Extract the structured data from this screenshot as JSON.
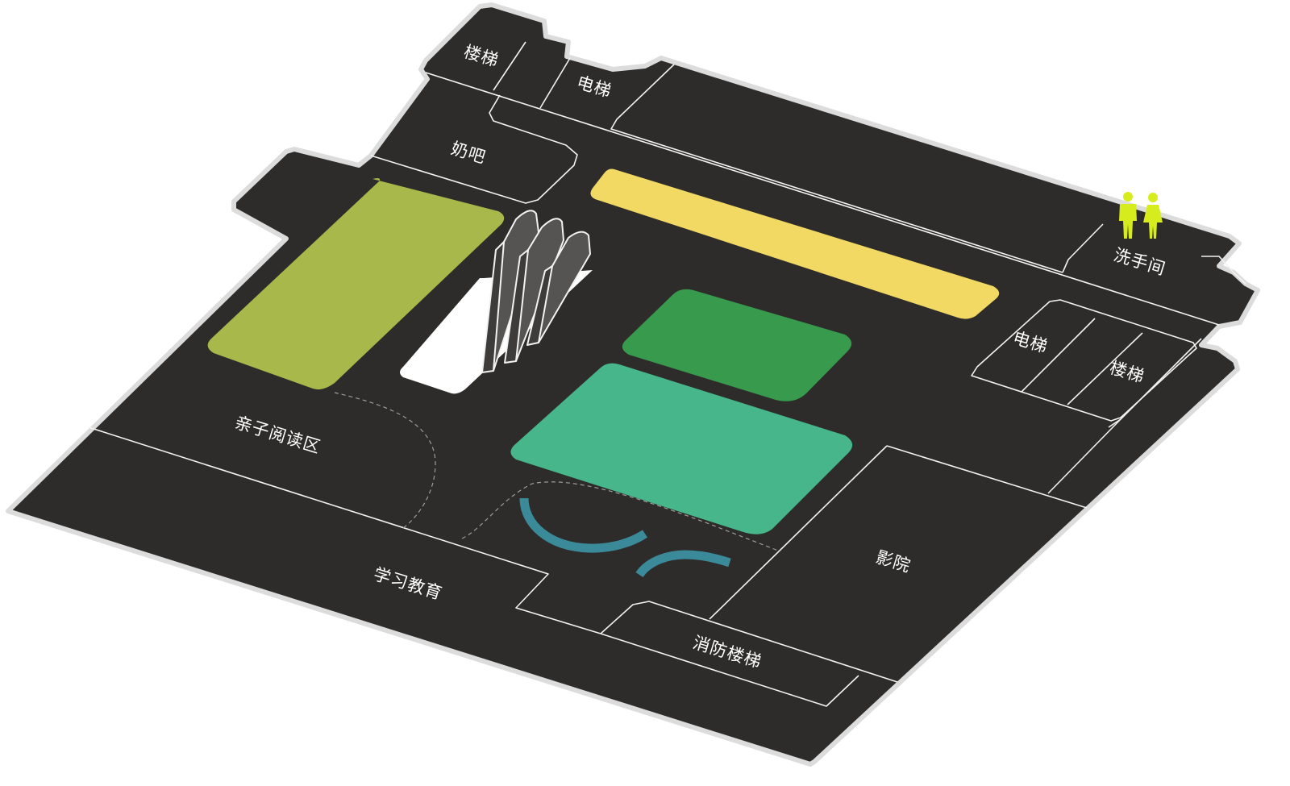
{
  "colors": {
    "floor": "#2d2c2a",
    "outline": "#dcdcdc",
    "room_line": "#f2f2f2",
    "reading_area": "#a9b84a",
    "service_counter": "#f2d964",
    "display_block_top": "#379a4d",
    "display_block_bottom": "#47b68a",
    "seating_arc": "#3b8a9a",
    "restroom_icon": "#d7ec1c",
    "escalator_gap": "#ffffff"
  },
  "labels": {
    "stairs_top": "楼梯",
    "elevator_top": "电梯",
    "nursing_room": "奶吧",
    "restroom": "洗手间",
    "elevator_right": "电梯",
    "stairs_right": "楼梯",
    "parent_child_reading": "亲子阅读区",
    "learning_education": "学习教育",
    "cinema": "影院",
    "fire_stairs": "消防楼梯"
  },
  "icons": {
    "restroom": "restroom-icon",
    "escalator": "escalator-icon"
  }
}
